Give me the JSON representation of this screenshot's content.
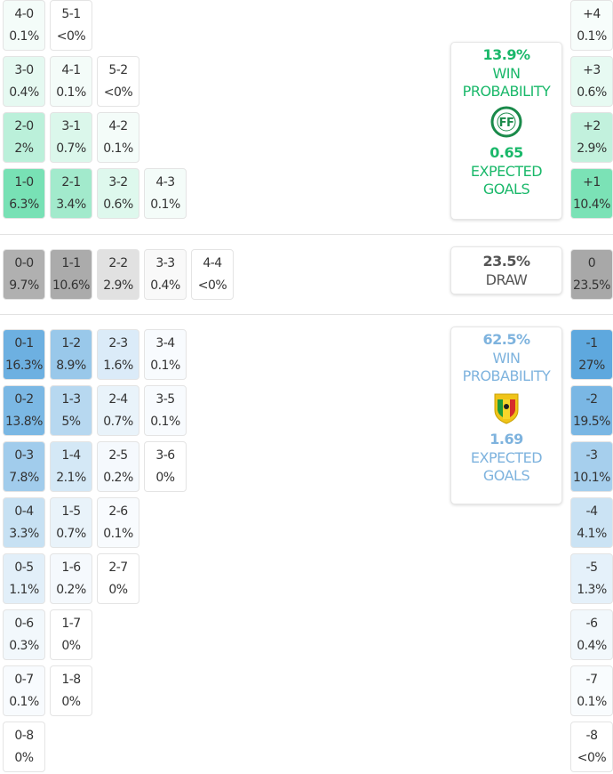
{
  "colors": {
    "home": "#6fdfb0",
    "away": "#5aa6dd",
    "draw": "#a8a8a8",
    "home_text": "#1ab86a",
    "away_text": "#7eb3de",
    "draw_text": "#555555"
  },
  "home_scores": [
    {
      "score": "1-0",
      "pct": "6.3%"
    },
    {
      "score": "2-1",
      "pct": "3.4%"
    },
    {
      "score": "3-2",
      "pct": "0.6%"
    },
    {
      "score": "4-3",
      "pct": "0.1%"
    },
    {
      "score": "2-0",
      "pct": "2%"
    },
    {
      "score": "3-1",
      "pct": "0.7%"
    },
    {
      "score": "4-2",
      "pct": "0.1%"
    },
    {
      "score": "3-0",
      "pct": "0.4%"
    },
    {
      "score": "4-1",
      "pct": "0.1%"
    },
    {
      "score": "5-2",
      "pct": "<0%"
    },
    {
      "score": "4-0",
      "pct": "0.1%"
    },
    {
      "score": "5-1",
      "pct": "<0%"
    }
  ],
  "draw_scores": [
    {
      "score": "0-0",
      "pct": "9.7%"
    },
    {
      "score": "1-1",
      "pct": "10.6%"
    },
    {
      "score": "2-2",
      "pct": "2.9%"
    },
    {
      "score": "3-3",
      "pct": "0.4%"
    },
    {
      "score": "4-4",
      "pct": "<0%"
    }
  ],
  "away_scores": [
    {
      "score": "0-1",
      "pct": "16.3%"
    },
    {
      "score": "1-2",
      "pct": "8.9%"
    },
    {
      "score": "2-3",
      "pct": "1.6%"
    },
    {
      "score": "3-4",
      "pct": "0.1%"
    },
    {
      "score": "0-2",
      "pct": "13.8%"
    },
    {
      "score": "1-3",
      "pct": "5%"
    },
    {
      "score": "2-4",
      "pct": "0.7%"
    },
    {
      "score": "3-5",
      "pct": "0.1%"
    },
    {
      "score": "0-3",
      "pct": "7.8%"
    },
    {
      "score": "1-4",
      "pct": "2.1%"
    },
    {
      "score": "2-5",
      "pct": "0.2%"
    },
    {
      "score": "3-6",
      "pct": "0%"
    },
    {
      "score": "0-4",
      "pct": "3.3%"
    },
    {
      "score": "1-5",
      "pct": "0.7%"
    },
    {
      "score": "2-6",
      "pct": "0.1%"
    },
    {
      "score": "0-5",
      "pct": "1.1%"
    },
    {
      "score": "1-6",
      "pct": "0.2%"
    },
    {
      "score": "2-7",
      "pct": "0%"
    },
    {
      "score": "0-6",
      "pct": "0.3%"
    },
    {
      "score": "1-7",
      "pct": "0%"
    },
    {
      "score": "0-7",
      "pct": "0.1%"
    },
    {
      "score": "1-8",
      "pct": "0%"
    },
    {
      "score": "0-8",
      "pct": "0%"
    }
  ],
  "margins": [
    {
      "label": "+4",
      "pct": "0.1%"
    },
    {
      "label": "+3",
      "pct": "0.6%"
    },
    {
      "label": "+2",
      "pct": "2.9%"
    },
    {
      "label": "+1",
      "pct": "10.4%"
    },
    {
      "label": "0",
      "pct": "23.5%"
    },
    {
      "label": "-1",
      "pct": "27%"
    },
    {
      "label": "-2",
      "pct": "19.5%"
    },
    {
      "label": "-3",
      "pct": "10.1%"
    },
    {
      "label": "-4",
      "pct": "4.1%"
    },
    {
      "label": "-5",
      "pct": "1.3%"
    },
    {
      "label": "-6",
      "pct": "0.4%"
    },
    {
      "label": "-7",
      "pct": "0.1%"
    },
    {
      "label": "-8",
      "pct": "<0%"
    }
  ],
  "home_card": {
    "win_pct": "13.9%",
    "win_label_1": "WIN",
    "win_label_2": "PROBABILITY",
    "xg": "0.65",
    "xg_label_1": "EXPECTED",
    "xg_label_2": "GOALS",
    "logo_text": "FF"
  },
  "draw_card": {
    "pct": "23.5%",
    "label": "DRAW"
  },
  "away_card": {
    "win_pct": "62.5%",
    "win_label_1": "WIN",
    "win_label_2": "PROBABILITY",
    "xg": "1.69",
    "xg_label_1": "EXPECTED",
    "xg_label_2": "GOALS"
  }
}
